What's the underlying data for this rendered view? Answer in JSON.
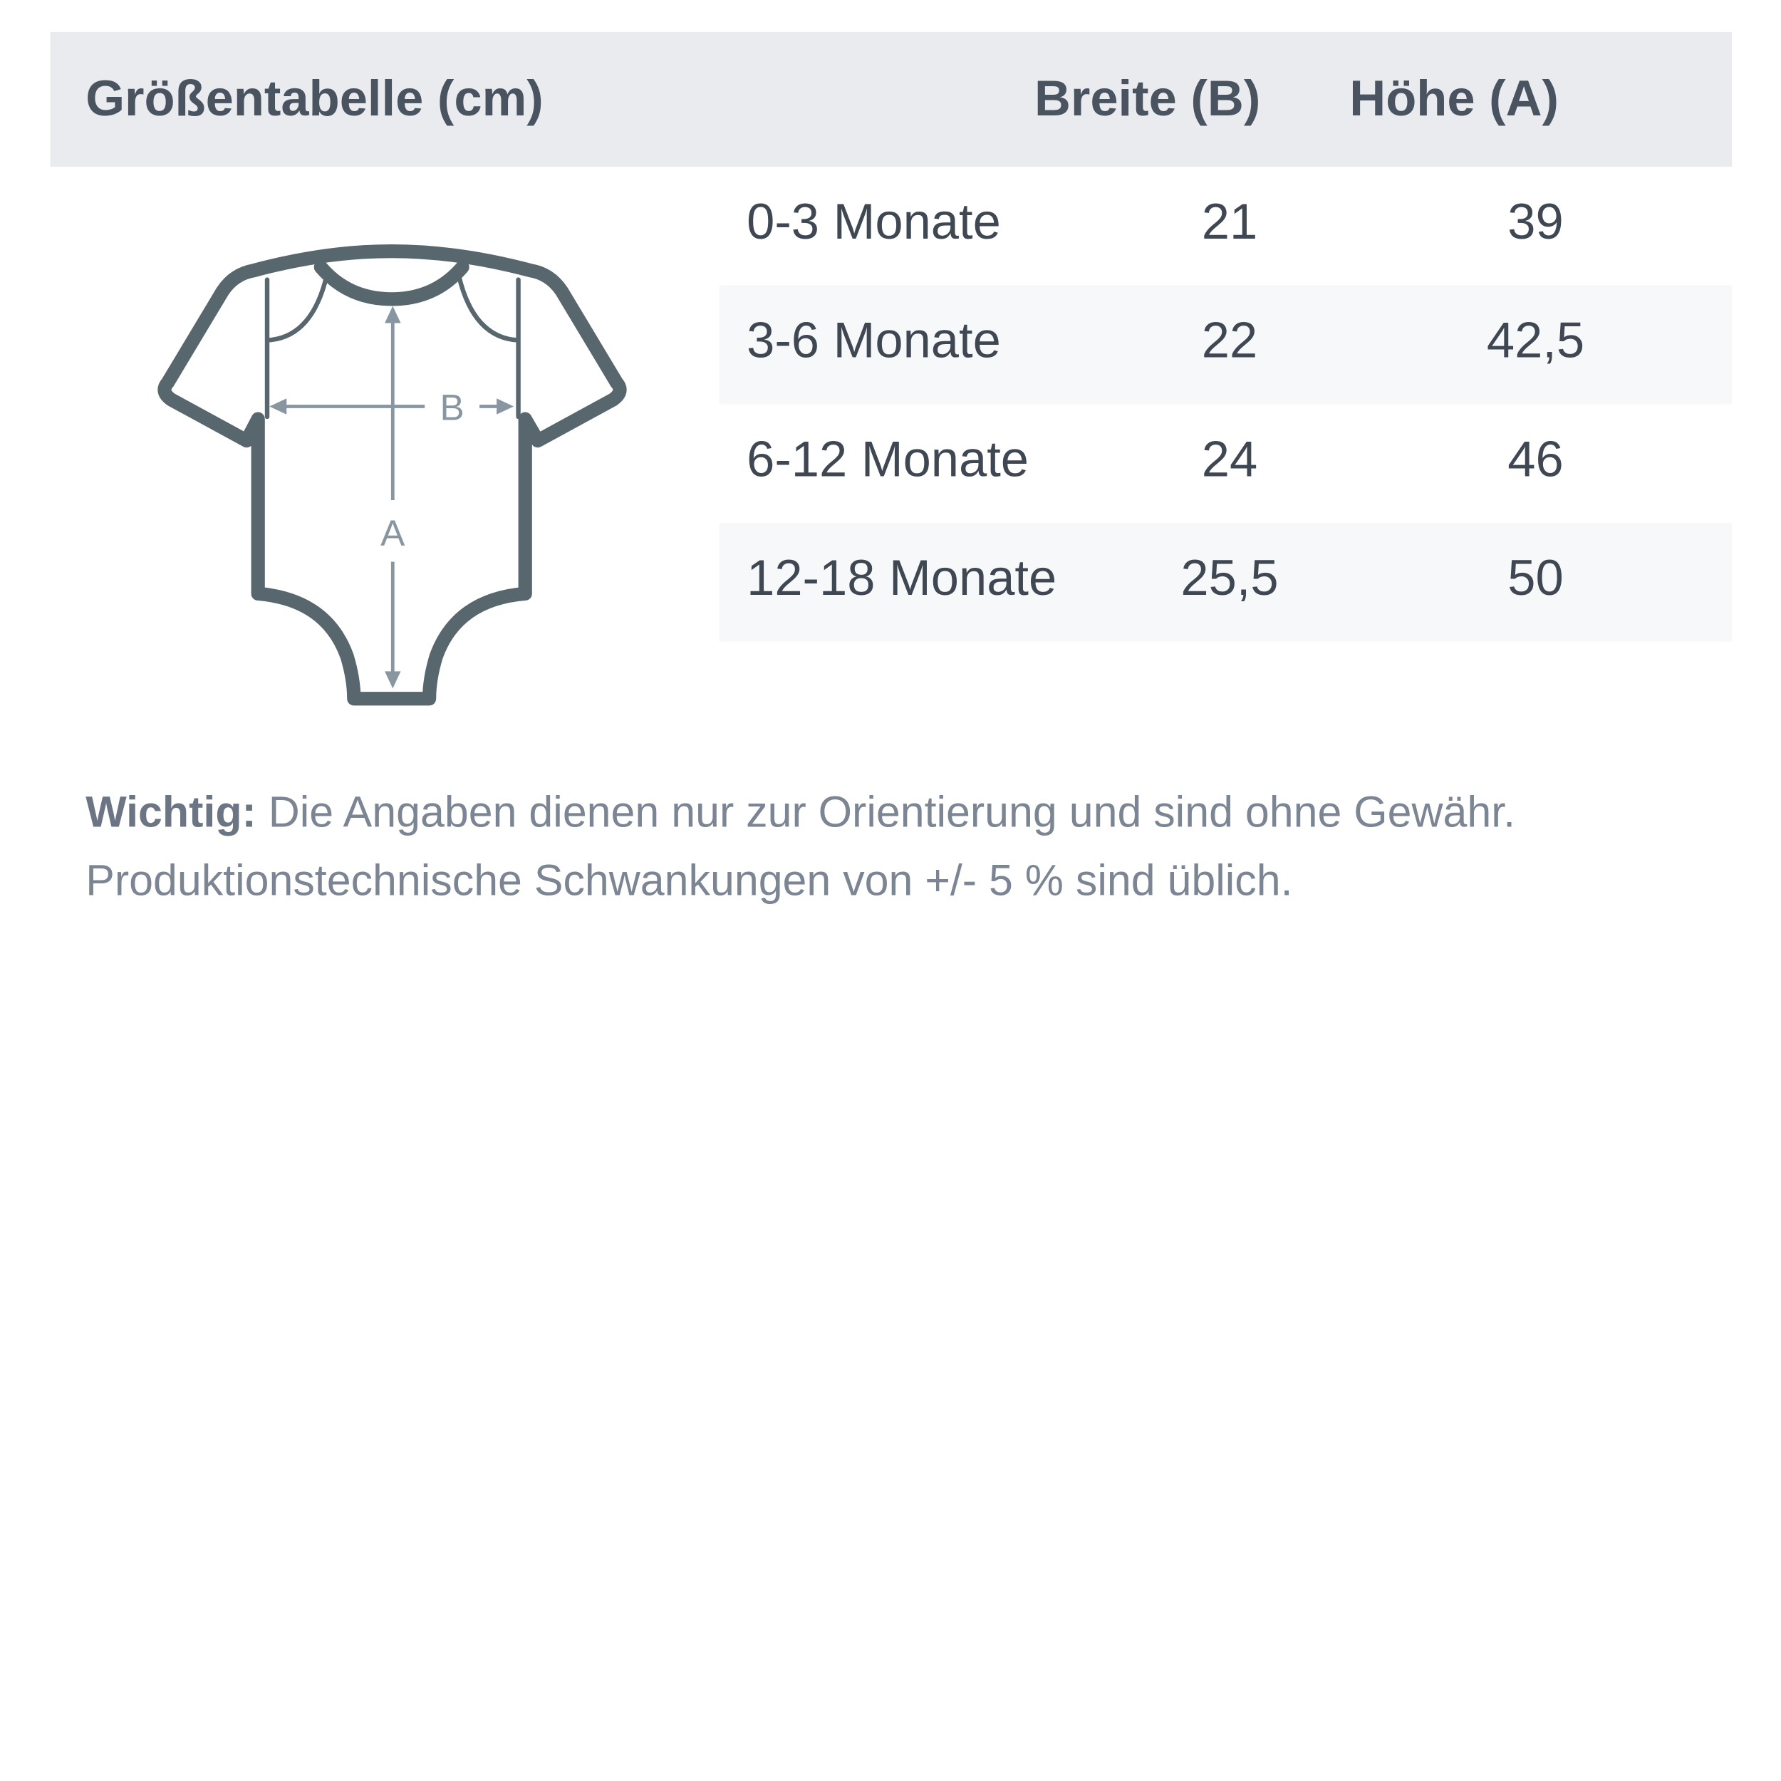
{
  "header": {
    "title": "Größentabelle (cm)",
    "col_width": "Breite (B)",
    "col_height": "Höhe (A)"
  },
  "rows": [
    {
      "size": "0-3 Monate",
      "width": "21",
      "height": "39"
    },
    {
      "size": "3-6 Monate",
      "width": "22",
      "height": "42,5"
    },
    {
      "size": "6-12 Monate",
      "width": "24",
      "height": "46"
    },
    {
      "size": "12-18 Monate",
      "width": "25,5",
      "height": "50"
    }
  ],
  "diagram": {
    "label_b": "B",
    "label_a": "A",
    "outline_color": "#58666e",
    "arrow_color": "#8896a2"
  },
  "note": {
    "bold": "Wichtig:",
    "line1": " Die Angaben dienen nur zur Orientierung und sind ohne Gewähr.",
    "line2": "Produktionstechnische Schwankungen von +/- 5 % sind üblich."
  }
}
